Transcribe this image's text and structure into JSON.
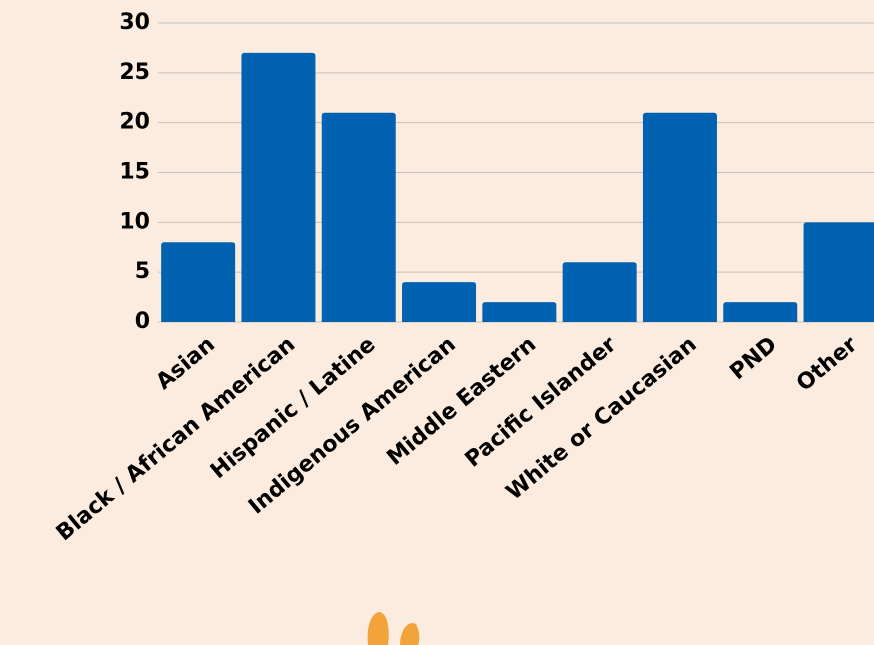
{
  "chart_data": {
    "type": "bar",
    "categories": [
      "Asian",
      "Black / African American",
      "Hispanic / Latine",
      "Indigenous American",
      "Middle Eastern",
      "Pacific Islander",
      "White or Caucasian",
      "PND",
      "Other"
    ],
    "values": [
      8,
      27,
      21,
      4,
      2,
      6,
      21,
      2,
      10
    ],
    "color": "#0062b1",
    "ylim": [
      0,
      30
    ],
    "yticks": [
      0,
      5,
      10,
      15,
      20,
      25,
      30
    ],
    "grid": true
  }
}
